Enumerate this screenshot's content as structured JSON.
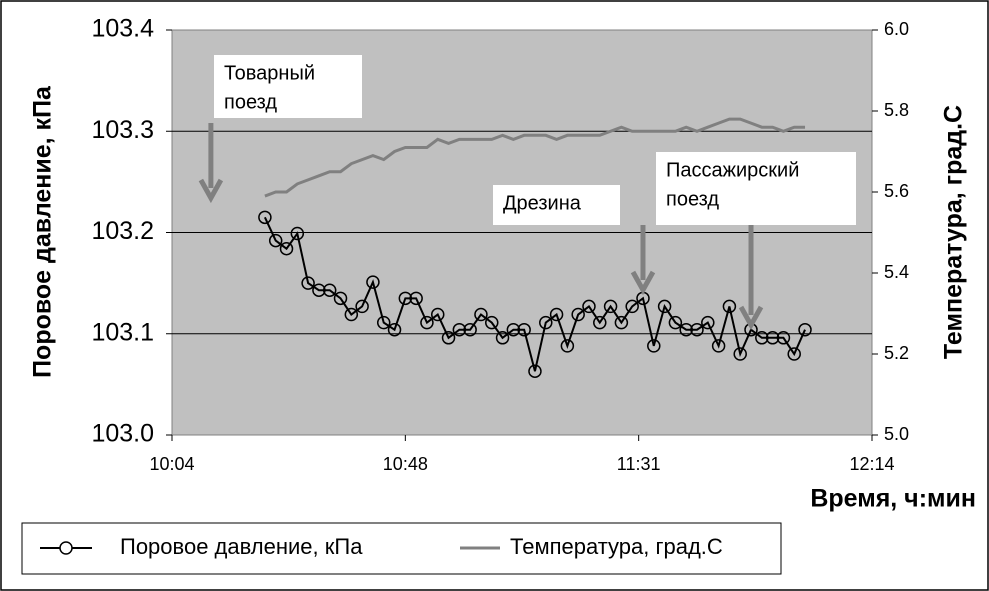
{
  "chart_data": {
    "type": "line",
    "x_label": "Время, ч:мин",
    "y_label": "Поровое давление, кПа",
    "y2_label": "Температура, град.С",
    "xlim": [
      604.8,
      734.4
    ],
    "xticks": [
      {
        "value": 604.8,
        "label": "10:04"
      },
      {
        "value": 648,
        "label": "10:48"
      },
      {
        "value": 691.2,
        "label": "11:31"
      },
      {
        "value": 734.4,
        "label": "12:14"
      }
    ],
    "ylim": [
      103.0,
      103.4
    ],
    "yticks": [
      {
        "value": 103.0,
        "label": "103.0"
      },
      103.1,
      103.2,
      103.3,
      103.4
    ],
    "y2lim": [
      5.0,
      6.0
    ],
    "y2ticks": [
      {
        "value": 5.0,
        "label": "5.0"
      },
      5.2,
      5.4,
      5.6,
      5.8,
      {
        "value": 6.0,
        "label": "6.0"
      }
    ],
    "grid": true,
    "legend": "bottom",
    "x": [
      622,
      624,
      626,
      628,
      630,
      632,
      634,
      636,
      638,
      640,
      642,
      644,
      646,
      648,
      650,
      652,
      654,
      656,
      658,
      660,
      662,
      664,
      666,
      668,
      670,
      672,
      674,
      676,
      678,
      680,
      682,
      684,
      686,
      688,
      690,
      692,
      694,
      696,
      698,
      700,
      702,
      704,
      706,
      708,
      710,
      712,
      714,
      716,
      718,
      720,
      722
    ],
    "series": [
      {
        "name": "Поровое давление, кПа",
        "color": "#000000",
        "marker": "circle",
        "values": [
          103.215,
          103.192,
          103.184,
          103.199,
          103.15,
          103.143,
          103.143,
          103.135,
          103.119,
          103.127,
          103.151,
          103.111,
          103.104,
          103.135,
          103.135,
          103.111,
          103.119,
          103.096,
          103.104,
          103.104,
          103.119,
          103.111,
          103.096,
          103.104,
          103.104,
          103.063,
          103.111,
          103.119,
          103.088,
          103.119,
          103.127,
          103.111,
          103.127,
          103.111,
          103.127,
          103.135,
          103.088,
          103.127,
          103.111,
          103.104,
          103.104,
          103.111,
          103.088,
          103.127,
          103.08,
          103.104,
          103.096,
          103.096,
          103.096,
          103.08,
          103.104
        ]
      },
      {
        "name": "Температура, град.С",
        "color": "#808080",
        "axis": "y2",
        "values": [
          5.59,
          5.6,
          5.6,
          5.62,
          5.63,
          5.64,
          5.65,
          5.65,
          5.67,
          5.68,
          5.69,
          5.68,
          5.7,
          5.71,
          5.71,
          5.71,
          5.73,
          5.72,
          5.73,
          5.73,
          5.73,
          5.73,
          5.74,
          5.73,
          5.74,
          5.74,
          5.74,
          5.73,
          5.74,
          5.74,
          5.74,
          5.74,
          5.75,
          5.76,
          5.75,
          5.75,
          5.75,
          5.75,
          5.75,
          5.76,
          5.75,
          5.76,
          5.77,
          5.78,
          5.78,
          5.77,
          5.76,
          5.76,
          5.75,
          5.76,
          5.76
        ]
      }
    ],
    "annotations": [
      {
        "lines": [
          "Товарный",
          "поезд"
        ],
        "x": 612
      },
      {
        "lines": [
          "Дрезина"
        ],
        "x": 692
      },
      {
        "lines": [
          "Пассажирский",
          "поезд"
        ],
        "x": 712
      }
    ]
  }
}
